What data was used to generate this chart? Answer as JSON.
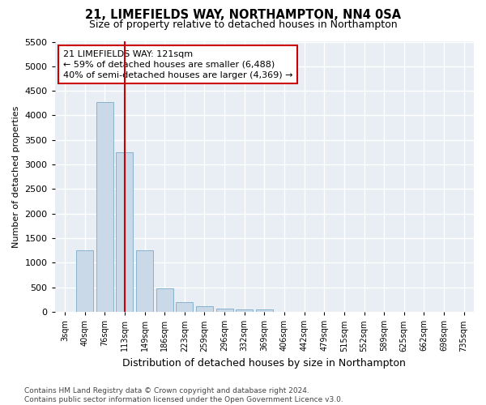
{
  "title": "21, LIMEFIELDS WAY, NORTHAMPTON, NN4 0SA",
  "subtitle": "Size of property relative to detached houses in Northampton",
  "xlabel": "Distribution of detached houses by size in Northampton",
  "ylabel": "Number of detached properties",
  "categories": [
    "3sqm",
    "40sqm",
    "76sqm",
    "113sqm",
    "149sqm",
    "186sqm",
    "223sqm",
    "259sqm",
    "296sqm",
    "332sqm",
    "369sqm",
    "406sqm",
    "442sqm",
    "479sqm",
    "515sqm",
    "552sqm",
    "589sqm",
    "625sqm",
    "662sqm",
    "698sqm",
    "735sqm"
  ],
  "values": [
    0,
    1250,
    4280,
    3250,
    1250,
    480,
    200,
    115,
    75,
    55,
    50,
    0,
    0,
    0,
    0,
    0,
    0,
    0,
    0,
    0,
    0
  ],
  "bar_color": "#c9d9e8",
  "bar_edge_color": "#7baac8",
  "vline_x_index": 3,
  "vline_color": "#cc0000",
  "annotation_line1": "21 LIMEFIELDS WAY: 121sqm",
  "annotation_line2": "← 59% of detached houses are smaller (6,488)",
  "annotation_line3": "40% of semi-detached houses are larger (4,369) →",
  "annotation_box_facecolor": "#ffffff",
  "annotation_box_edgecolor": "#cc0000",
  "ylim_max": 5500,
  "yticks": [
    0,
    500,
    1000,
    1500,
    2000,
    2500,
    3000,
    3500,
    4000,
    4500,
    5000,
    5500
  ],
  "footer_line1": "Contains HM Land Registry data © Crown copyright and database right 2024.",
  "footer_line2": "Contains public sector information licensed under the Open Government Licence v3.0.",
  "bg_color": "#ffffff",
  "plot_bg_color": "#e8eef4",
  "grid_color": "#ffffff",
  "title_fontsize": 10.5,
  "subtitle_fontsize": 9,
  "xlabel_fontsize": 9,
  "ylabel_fontsize": 8,
  "ytick_fontsize": 8,
  "xtick_fontsize": 7,
  "footer_fontsize": 6.5,
  "annotation_fontsize": 8
}
